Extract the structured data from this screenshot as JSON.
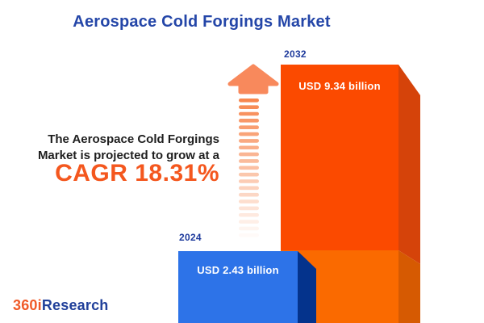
{
  "title": {
    "text": "Aerospace Cold Forgings Market",
    "color": "#2446A8"
  },
  "annotation": {
    "line1": "The Aerospace Cold Forgings",
    "line2": "Market is projected to grow at a",
    "cagr_label": "CAGR 18.31%",
    "cagr_color": "#F4571E"
  },
  "bars": {
    "b2024": {
      "year": "2024",
      "value_label": "USD 2.43 billion",
      "front_color": "#2D73E8",
      "side_color": "#04338C"
    },
    "b2032": {
      "year": "2032",
      "value_label": "USD 9.34 billion",
      "front_top_color": "#FB4A00",
      "front_bottom_color": "#FA6A00",
      "side_top_color": "#D5430A",
      "side_bottom_color": "#D65A02"
    }
  },
  "arrow": {
    "head_color": "#F8895C",
    "stripe_color": "#F7874F"
  },
  "logo": {
    "part1": "360i",
    "part2": "Research",
    "part1_color": "#F05A28",
    "part2_color": "#21409A"
  },
  "chart_data": {
    "type": "bar",
    "title": "Aerospace Cold Forgings Market",
    "categories": [
      "2024",
      "2032"
    ],
    "values": [
      2.43,
      9.34
    ],
    "unit": "USD billion",
    "value_labels": [
      "USD 2.43 billion",
      "USD 9.34 billion"
    ],
    "cagr_percent": 18.31,
    "series_colors": [
      "#2D73E8",
      "#FB4A00"
    ],
    "xlabel": "",
    "ylabel": "",
    "legend": "none",
    "axes": "hidden",
    "grid": false,
    "style": "3d-infographic-bars"
  }
}
